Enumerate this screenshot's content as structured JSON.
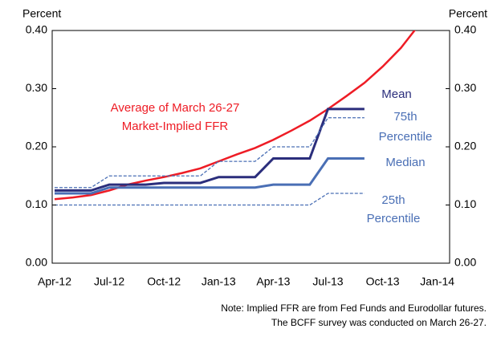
{
  "chart_data": {
    "type": "line",
    "y_label": "Percent",
    "y2_label": "Percent",
    "categories": [
      "Apr-12",
      null,
      null,
      "Jul-12",
      null,
      null,
      "Oct-12",
      null,
      null,
      "Jan-13",
      null,
      null,
      "Apr-13",
      null,
      null,
      "Jul-13",
      null,
      null,
      "Oct-13",
      null,
      null,
      "Jan-14"
    ],
    "series": [
      {
        "name": "Average of March 26-27 Market-Implied FFR",
        "color": "#ee1c25",
        "dash": false,
        "width": 2.5,
        "values": [
          0.11,
          0.113,
          0.117,
          0.125,
          0.135,
          0.142,
          0.148,
          0.155,
          0.163,
          0.175,
          0.187,
          0.198,
          0.212,
          0.228,
          0.245,
          0.265,
          0.287,
          0.31,
          0.338,
          0.37,
          0.41,
          null
        ]
      },
      {
        "name": "Mean",
        "color": "#2b2e7c",
        "dash": false,
        "width": 3,
        "values": [
          0.125,
          0.125,
          0.125,
          0.135,
          0.135,
          0.135,
          0.138,
          0.138,
          0.138,
          0.148,
          0.148,
          0.148,
          0.18,
          0.18,
          0.18,
          0.265,
          0.265,
          0.265,
          null,
          null,
          null,
          null
        ]
      },
      {
        "name": "75th Percentile",
        "color": "#4a6fb5",
        "dash": true,
        "width": 1.3,
        "values": [
          0.13,
          0.13,
          0.13,
          0.15,
          0.15,
          0.15,
          0.15,
          0.15,
          0.15,
          0.175,
          0.175,
          0.175,
          0.2,
          0.2,
          0.2,
          0.25,
          0.25,
          0.25,
          null,
          null,
          null,
          null
        ]
      },
      {
        "name": "Median",
        "color": "#4a6fb5",
        "dash": false,
        "width": 3,
        "values": [
          0.12,
          0.12,
          0.12,
          0.13,
          0.13,
          0.13,
          0.13,
          0.13,
          0.13,
          0.13,
          0.13,
          0.13,
          0.135,
          0.135,
          0.135,
          0.18,
          0.18,
          0.18,
          null,
          null,
          null,
          null
        ]
      },
      {
        "name": "25th Percentile",
        "color": "#4a6fb5",
        "dash": true,
        "width": 1.3,
        "values": [
          0.1,
          0.1,
          0.1,
          0.1,
          0.1,
          0.1,
          0.1,
          0.1,
          0.1,
          0.1,
          0.1,
          0.1,
          0.1,
          0.1,
          0.1,
          0.12,
          0.12,
          0.12,
          null,
          null,
          null,
          null
        ]
      }
    ],
    "ylim": [
      0,
      0.4
    ],
    "yticks": [
      {
        "value": 0,
        "label": "0.00"
      },
      {
        "value": 0.1,
        "label": "0.10"
      },
      {
        "value": 0.2,
        "label": "0.20"
      },
      {
        "value": 0.3,
        "label": "0.30"
      },
      {
        "value": 0.4,
        "label": "0.40"
      }
    ],
    "y2lim": [
      0,
      0.4
    ],
    "y2ticks": [
      {
        "value": 0,
        "label": "0.00"
      },
      {
        "value": 0.1,
        "label": "0.10"
      },
      {
        "value": 0.2,
        "label": "0.20"
      },
      {
        "value": 0.3,
        "label": "0.30"
      },
      {
        "value": 0.4,
        "label": "0.40"
      }
    ],
    "annotations": {
      "ffr": [
        "Average of March 26-27",
        "Market-Implied FFR"
      ],
      "mean": "Mean",
      "p75": [
        "75th",
        "Percentile"
      ],
      "median": "Median",
      "p25": [
        "25th",
        "Percentile"
      ]
    },
    "notes": [
      "Note: Implied FFR are from Fed Funds and Eurodollar futures.",
      "The BCFF survey was conducted on March 26-27."
    ]
  }
}
